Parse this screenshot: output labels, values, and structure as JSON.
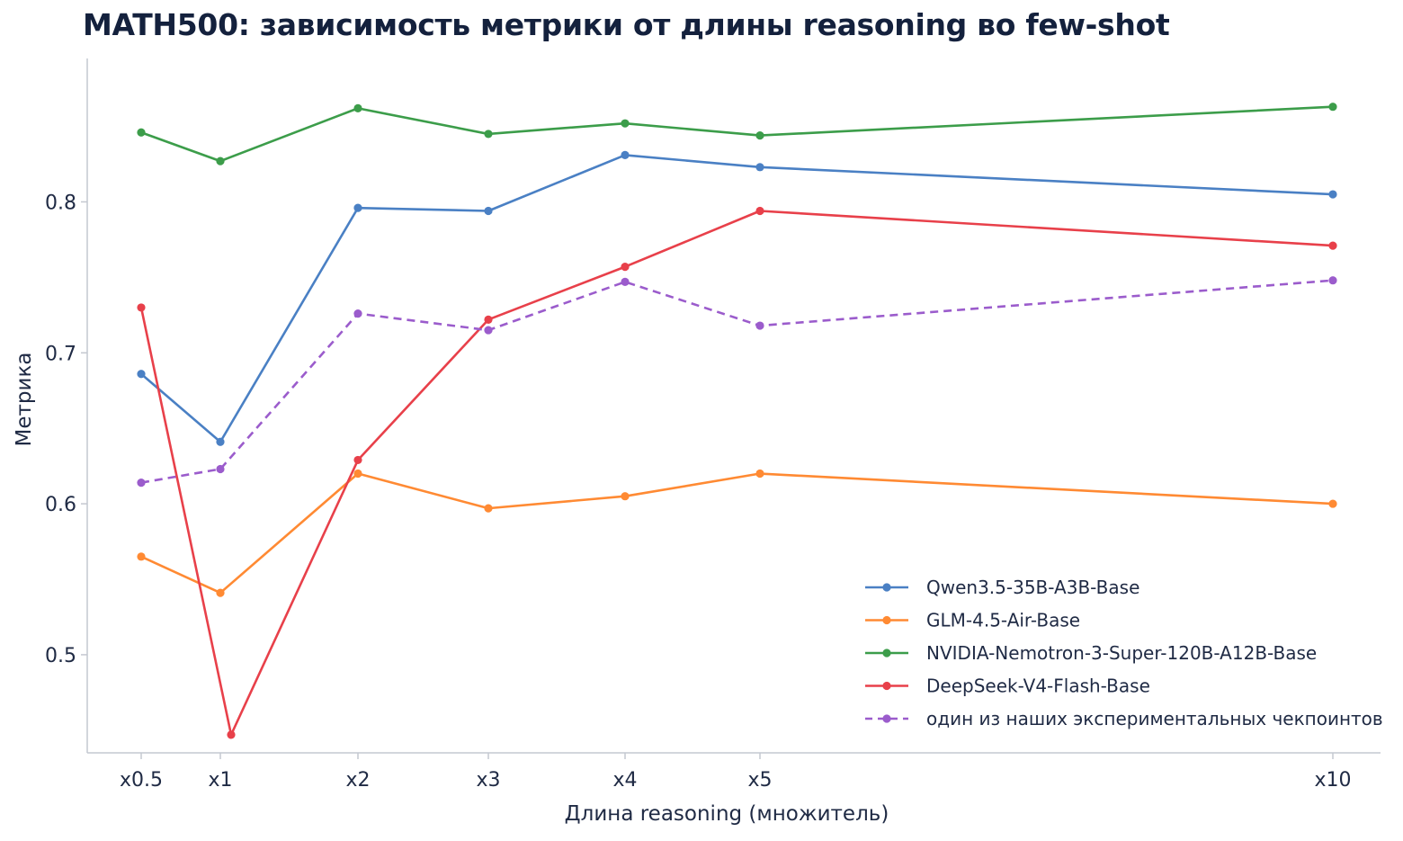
{
  "chart_data": {
    "type": "line",
    "title": "MATH500: зависимость метрики от длины reasoning во few-shot",
    "xlabel": "Длина reasoning (множитель)",
    "ylabel": "Метрика",
    "x": [
      0.5,
      1,
      2,
      3,
      4,
      5,
      10
    ],
    "categories": [
      "x0.5",
      "x1",
      "x2",
      "x3",
      "x4",
      "x5",
      "x10"
    ],
    "yticks": [
      "0.5",
      "0.6",
      "0.7",
      "0.8"
    ],
    "ylim": [
      0.435,
      0.895
    ],
    "grid": false,
    "legend_position": "lower-right",
    "series": [
      {
        "name": "Qwen3.5-35B-A3B-Base",
        "color": "#4a80c4",
        "dashed": false,
        "values": [
          0.686,
          0.641,
          0.796,
          0.794,
          0.831,
          0.823,
          0.805
        ]
      },
      {
        "name": "GLM-4.5-Air-Base",
        "color": "#ff8a33",
        "dashed": false,
        "values": [
          0.565,
          0.541,
          0.62,
          0.597,
          0.605,
          0.62,
          0.6
        ]
      },
      {
        "name": "NVIDIA-Nemotron-3-Super-120B-A12B-Base",
        "color": "#3c9d4a",
        "dashed": false,
        "values": [
          0.846,
          0.827,
          0.862,
          0.845,
          0.852,
          0.844,
          0.863
        ]
      },
      {
        "name": "DeepSeek-V4-Flash-Base",
        "color": "#e8404a",
        "dashed": false,
        "values": [
          0.73,
          0.447,
          0.629,
          0.722,
          0.757,
          0.794,
          0.771
        ]
      },
      {
        "name": "один из наших экспериментальных чекпоинтов",
        "color": "#9b5ccc",
        "dashed": true,
        "values": [
          0.614,
          0.623,
          0.726,
          0.715,
          0.747,
          0.718,
          0.748
        ]
      }
    ]
  }
}
